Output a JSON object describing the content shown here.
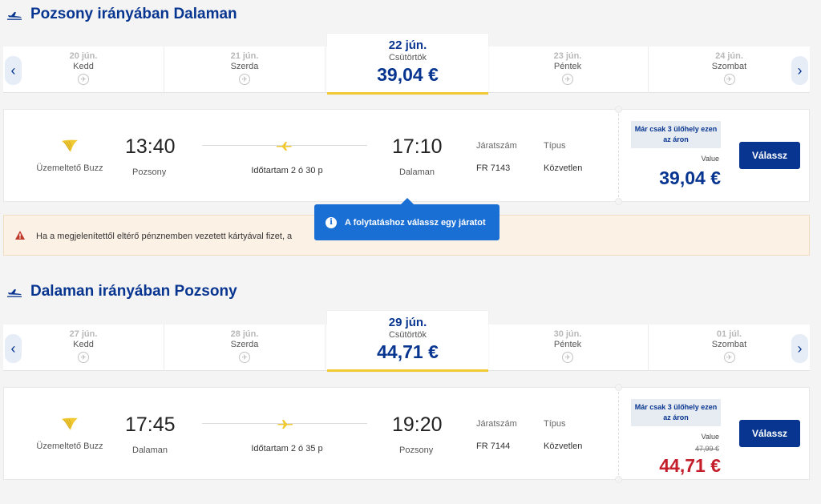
{
  "outbound": {
    "title": "Pozsony irányában Dalaman",
    "days": [
      {
        "date": "20 jún.",
        "weekday": "Kedd"
      },
      {
        "date": "21 jún.",
        "weekday": "Szerda"
      },
      {
        "date": "23 jún.",
        "weekday": "Péntek"
      },
      {
        "date": "24 jún.",
        "weekday": "Szombat"
      }
    ],
    "selected": {
      "date": "22 jún.",
      "weekday": "Csütörtök",
      "price": "39,04 €"
    },
    "flight": {
      "operator": "Üzemeltető Buzz",
      "dep_time": "13:40",
      "dep_place": "Pozsony",
      "arr_time": "17:10",
      "arr_place": "Dalaman",
      "duration": "Időtartam 2 ó 30 p",
      "flight_no_label": "Járatszám",
      "flight_no": "FR 7143",
      "type_label": "Típus",
      "type": "Közvetlen",
      "badge": "Már csak 3 ülőhely ezen az áron",
      "fare_label": "Value",
      "price": "39,04 €",
      "button": "Válassz"
    }
  },
  "warning": {
    "text": "Ha a megjelenítettől eltérő pénznemben vezetett kártyával fizet, a"
  },
  "tooltip": {
    "text": "A folytatáshoz válassz egy járatot"
  },
  "inbound": {
    "title": "Dalaman irányában Pozsony",
    "days": [
      {
        "date": "27 jún.",
        "weekday": "Kedd"
      },
      {
        "date": "28 jún.",
        "weekday": "Szerda"
      },
      {
        "date": "30 jún.",
        "weekday": "Péntek"
      },
      {
        "date": "01 júl.",
        "weekday": "Szombat"
      }
    ],
    "selected": {
      "date": "29 jún.",
      "weekday": "Csütörtök",
      "price": "44,71 €"
    },
    "flight": {
      "operator": "Üzemeltető Buzz",
      "dep_time": "17:45",
      "dep_place": "Dalaman",
      "arr_time": "19:20",
      "arr_place": "Pozsony",
      "duration": "Időtartam 2 ó 35 p",
      "flight_no_label": "Járatszám",
      "flight_no": "FR 7144",
      "type_label": "Típus",
      "type": "Közvetlen",
      "badge": "Már csak 3 ülőhely ezen az áron",
      "fare_label": "Value",
      "old_price": "47,99 €",
      "price": "44,71 €",
      "button": "Válassz"
    }
  },
  "colors": {
    "brand": "#073590",
    "accent": "#f1c933",
    "sale": "#c41e2b",
    "info": "#1a6fd4"
  }
}
